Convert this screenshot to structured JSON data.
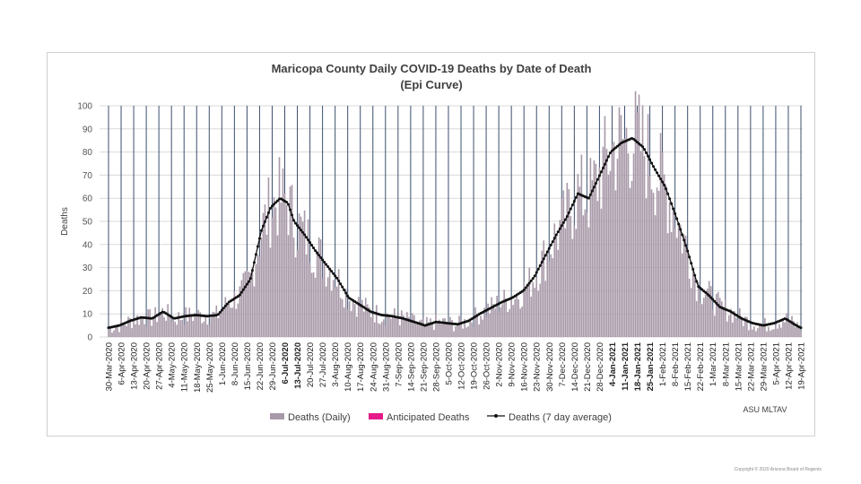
{
  "chart_data": {
    "type": "bar",
    "title": "Maricopa County Daily COVID-19 Deaths by Date of Death",
    "subtitle": "(Epi Curve)",
    "ylabel": "Deaths",
    "xlabel": "",
    "ylim": [
      0,
      100
    ],
    "yticks": [
      0,
      10,
      20,
      30,
      40,
      50,
      60,
      70,
      80,
      90,
      100
    ],
    "grid": true,
    "start_date": "2020-03-30",
    "num_days": 386,
    "tick_step_days": 7,
    "tick_labels": [
      "30-Mar-2020",
      "6-Apr-2020",
      "13-Apr-2020",
      "20-Apr-2020",
      "27-Apr-2020",
      "4-May-2020",
      "11-May-2020",
      "18-May-2020",
      "25-May-2020",
      "1-Jun-2020",
      "8-Jun-2020",
      "15-Jun-2020",
      "22-Jun-2020",
      "29-Jun-2020",
      "6-Jul-2020",
      "13-Jul-2020",
      "20-Jul-2020",
      "27-Jul-2020",
      "3-Aug-2020",
      "10-Aug-2020",
      "17-Aug-2020",
      "24-Aug-2020",
      "31-Aug-2020",
      "7-Sep-2020",
      "14-Sep-2020",
      "21-Sep-2020",
      "28-Sep-2020",
      "5-Oct-2020",
      "12-Oct-2020",
      "19-Oct-2020",
      "26-Oct-2020",
      "2-Nov-2020",
      "9-Nov-2020",
      "16-Nov-2020",
      "23-Nov-2020",
      "30-Nov-2020",
      "7-Dec-2020",
      "14-Dec-2020",
      "21-Dec-2020",
      "28-Dec-2020",
      "4-Jan-2021",
      "11-Jan-2021",
      "18-Jan-2021",
      "25-Jan-2021",
      "1-Feb-2021",
      "8-Feb-2021",
      "15-Feb-2021",
      "22-Feb-2021",
      "1-Mar-2021",
      "8-Mar-2021",
      "15-Mar-2021",
      "22-Mar-2021",
      "29-Mar-2021",
      "5-Apr-2021",
      "12-Apr-2021",
      "19-Apr-2021"
    ],
    "bold_tick_indices": [
      14,
      15,
      40,
      41,
      42,
      43
    ],
    "avg_anchors": [
      [
        0,
        4
      ],
      [
        7,
        5
      ],
      [
        14,
        7
      ],
      [
        21,
        8.5
      ],
      [
        28,
        8
      ],
      [
        35,
        11
      ],
      [
        42,
        8
      ],
      [
        49,
        9
      ],
      [
        56,
        9.5
      ],
      [
        63,
        9
      ],
      [
        70,
        9.5
      ],
      [
        77,
        15
      ],
      [
        84,
        18
      ],
      [
        91,
        25
      ],
      [
        98,
        46
      ],
      [
        104,
        56
      ],
      [
        110,
        60
      ],
      [
        115,
        58
      ],
      [
        119,
        50
      ],
      [
        126,
        44
      ],
      [
        133,
        37
      ],
      [
        140,
        31
      ],
      [
        147,
        25
      ],
      [
        154,
        17
      ],
      [
        161,
        14
      ],
      [
        168,
        11
      ],
      [
        175,
        9.5
      ],
      [
        182,
        9
      ],
      [
        189,
        8
      ],
      [
        196,
        6.5
      ],
      [
        203,
        5
      ],
      [
        210,
        6.5
      ],
      [
        217,
        6
      ],
      [
        224,
        5.5
      ],
      [
        231,
        7
      ],
      [
        238,
        10
      ],
      [
        245,
        12.5
      ],
      [
        252,
        15
      ],
      [
        259,
        17
      ],
      [
        266,
        20
      ],
      [
        273,
        26
      ],
      [
        280,
        35
      ],
      [
        287,
        44
      ],
      [
        294,
        52
      ],
      [
        301,
        62
      ],
      [
        308,
        60
      ],
      [
        315,
        70
      ],
      [
        322,
        80
      ],
      [
        329,
        84
      ],
      [
        336,
        86
      ],
      [
        343,
        82
      ],
      [
        350,
        73
      ],
      [
        357,
        65
      ],
      [
        364,
        52
      ],
      [
        371,
        38
      ],
      [
        378,
        22
      ],
      [
        385,
        18
      ],
      [
        392,
        13
      ],
      [
        399,
        11
      ],
      [
        406,
        8
      ],
      [
        413,
        6
      ],
      [
        420,
        5
      ],
      [
        427,
        6
      ],
      [
        434,
        8
      ],
      [
        441,
        5
      ],
      [
        444,
        4
      ]
    ],
    "series": [
      {
        "name": "Deaths (Daily)",
        "color": "#a899a8"
      },
      {
        "name": "Anticipated Deaths",
        "color": "#e6198a"
      },
      {
        "name": "Deaths (7 day average)",
        "color": "#111111"
      }
    ],
    "credit": "ASU MLTAV"
  },
  "footer": {
    "copyright": "Copyright © 2020 Arizona Board of Regents"
  }
}
